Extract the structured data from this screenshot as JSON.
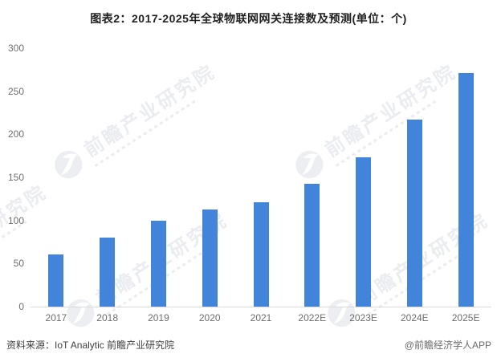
{
  "title": "图表2：2017-2025年全球物联网网关连接数及预测(单位：个)",
  "chart_data": {
    "type": "bar",
    "title": "图表2：2017-2025年全球物联网网关连接数及预测(单位：个)",
    "unit_label": "单位：个",
    "categories": [
      "2017",
      "2018",
      "2019",
      "2020",
      "2021",
      "2022E",
      "2023E",
      "2024E",
      "2025E"
    ],
    "values": [
      61,
      80,
      100,
      113,
      121,
      143,
      173,
      217,
      271
    ],
    "xlabel": "",
    "ylabel": "",
    "ylim": [
      0,
      300
    ],
    "yticks": [
      0,
      50,
      100,
      150,
      200,
      250,
      300
    ],
    "grid": false,
    "legend": "none",
    "bar_color": "#4284d9"
  },
  "watermark": {
    "text": "前瞻产业研究院"
  },
  "footer": {
    "source": "资料来源：IoT Analytic 前瞻产业研究院",
    "credit": "@前瞻经济学人APP"
  },
  "colors": {
    "bar": "#4284d9",
    "axis_line": "#d9d9d9",
    "axis_label": "#6e6e6e",
    "title_text": "#222222",
    "watermark": "rgba(130,145,168,0.17)",
    "background": "#ffffff"
  }
}
